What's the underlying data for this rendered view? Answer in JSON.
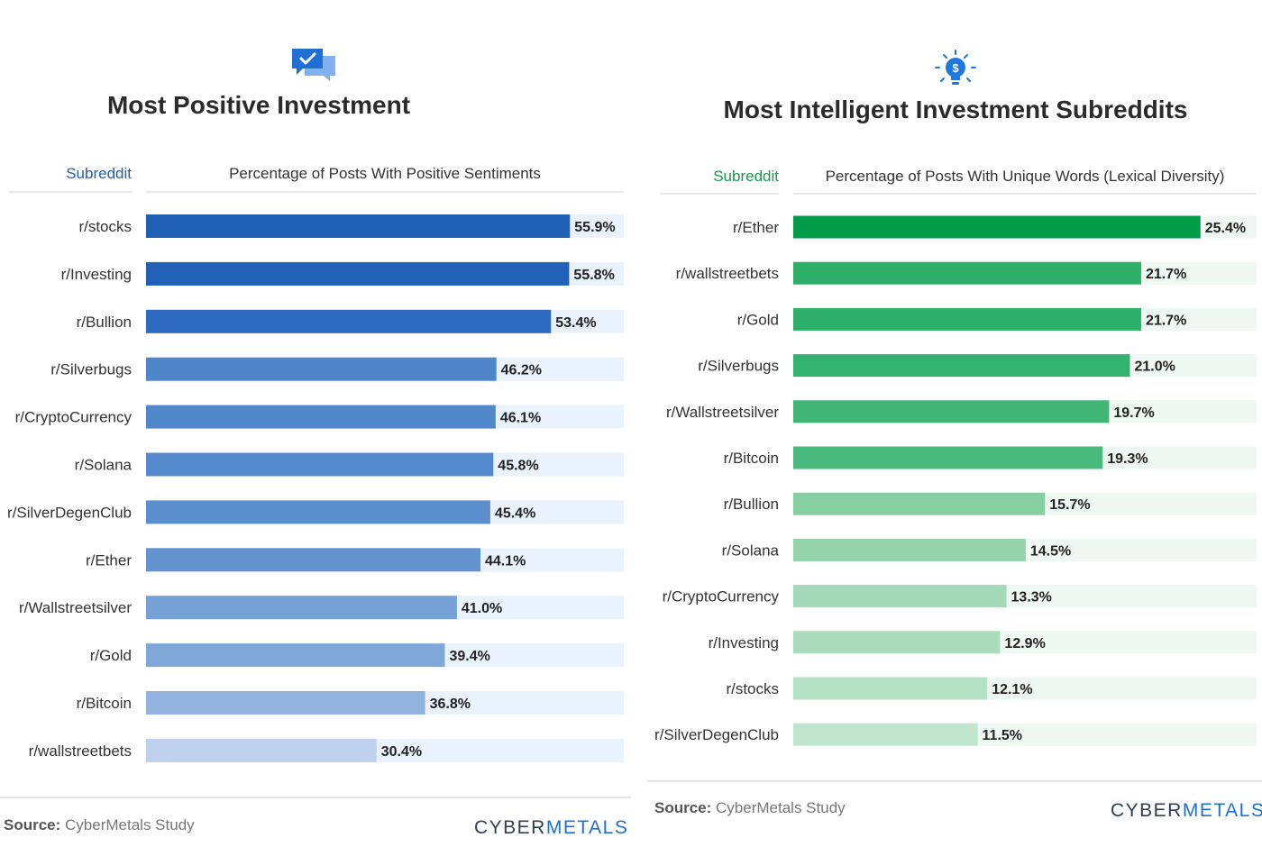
{
  "chart_data": [
    {
      "type": "bar",
      "orientation": "horizontal",
      "title": "Most Positive Investment",
      "icon": "chat-check-icon",
      "category_header": "Subreddit",
      "value_header": "Percentage of Posts With Positive Sentiments",
      "categories": [
        "r/stocks",
        "r/Investing",
        "r/Bullion",
        "r/Silverbugs",
        "r/CryptoCurrency",
        "r/Solana",
        "r/SilverDegenClub",
        "r/Ether",
        "r/Wallstreetsilver",
        "r/Gold",
        "r/Bitcoin",
        "r/wallstreetbets"
      ],
      "values": [
        55.9,
        55.8,
        53.4,
        46.2,
        46.1,
        45.8,
        45.4,
        44.1,
        41.0,
        39.4,
        36.8,
        30.4
      ],
      "value_labels": [
        "55.9%",
        "55.8%",
        "53.4%",
        "46.2%",
        "46.1%",
        "45.8%",
        "45.4%",
        "44.1%",
        "41.0%",
        "39.4%",
        "36.8%",
        "30.4%"
      ],
      "xlim": [
        0,
        63
      ],
      "unit": "%",
      "colors": {
        "header": "#1f5fb4",
        "track": "#eaf3fd",
        "bars": [
          "#1f5fb4",
          "#2161b8",
          "#2e6abf",
          "#4f86c9",
          "#5188ca",
          "#5489cb",
          "#5a8ecd",
          "#6494d0",
          "#76a1d5",
          "#7fa8d8",
          "#91b3de",
          "#bfd1ec"
        ]
      },
      "source_label": "Source:",
      "source_text": "CyberMetals Study",
      "brand": {
        "part1": "CYBER",
        "part2": "METALS"
      }
    },
    {
      "type": "bar",
      "orientation": "horizontal",
      "title": "Most Intelligent Investment Subreddits",
      "icon": "lightbulb-dollar-icon",
      "category_header": "Subreddit",
      "value_header": "Percentage of Posts With Unique Words (Lexical Diversity)",
      "categories": [
        "r/Ether",
        "r/wallstreetbets",
        "r/Gold",
        "r/Silverbugs",
        "r/Wallstreetsilver",
        "r/Bitcoin",
        "r/Bullion",
        "r/Solana",
        "r/CryptoCurrency",
        "r/Investing",
        "r/stocks",
        "r/SilverDegenClub"
      ],
      "values": [
        25.4,
        21.7,
        21.7,
        21.0,
        19.7,
        19.3,
        15.7,
        14.5,
        13.3,
        12.9,
        12.1,
        11.5
      ],
      "value_labels": [
        "25.4%",
        "21.7%",
        "21.7%",
        "21.0%",
        "19.7%",
        "19.3%",
        "15.7%",
        "14.5%",
        "13.3%",
        "12.9%",
        "12.1%",
        "11.5%"
      ],
      "xlim": [
        0,
        28.9
      ],
      "unit": "%",
      "colors": {
        "header": "#1a9a48",
        "track": "#f0f8f2",
        "bars": [
          "#009a49",
          "#2daf6a",
          "#2daf6a",
          "#33b16e",
          "#41b677",
          "#4ab97c",
          "#86cfa0",
          "#95d4ab",
          "#a4dab7",
          "#aadcbb",
          "#b4e0c3",
          "#c0e6cd"
        ]
      },
      "source_label": "Source:",
      "source_text": "CyberMetals Study",
      "brand": {
        "part1": "CYBER",
        "part2": "METALS"
      }
    }
  ]
}
